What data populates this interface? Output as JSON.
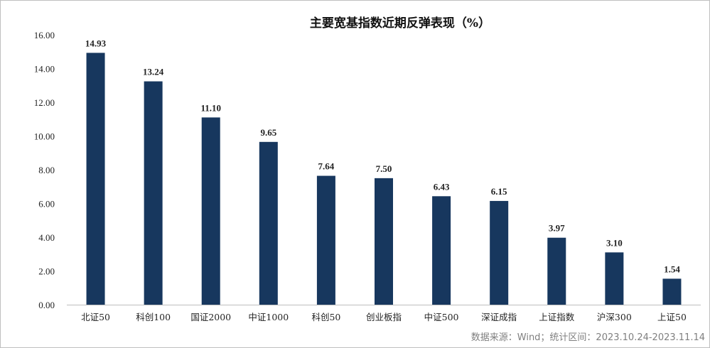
{
  "chart_data": {
    "type": "bar",
    "title": "主要宽基指数近期反弹表现（%）",
    "categories": [
      "北证50",
      "科创100",
      "国证2000",
      "中证1000",
      "科创50",
      "创业板指",
      "中证500",
      "深证成指",
      "上证指数",
      "沪深300",
      "上证50"
    ],
    "values": [
      14.93,
      13.24,
      11.1,
      9.65,
      7.64,
      7.5,
      6.43,
      6.15,
      3.97,
      3.1,
      1.54
    ],
    "data_labels": [
      "14.93",
      "13.24",
      "11.10",
      "9.65",
      "7.64",
      "7.50",
      "6.43",
      "6.15",
      "3.97",
      "3.10",
      "1.54"
    ],
    "y_ticks": [
      "0.00",
      "2.00",
      "4.00",
      "6.00",
      "8.00",
      "10.00",
      "12.00",
      "14.00",
      "16.00"
    ],
    "ylim": [
      0,
      16
    ],
    "xlabel": "",
    "ylabel": "",
    "grid": false,
    "legend": "none",
    "bar_color": "#17375e"
  },
  "source_note": "数据来源：Wind；统计区间：2023.10.24-2023.11.14"
}
